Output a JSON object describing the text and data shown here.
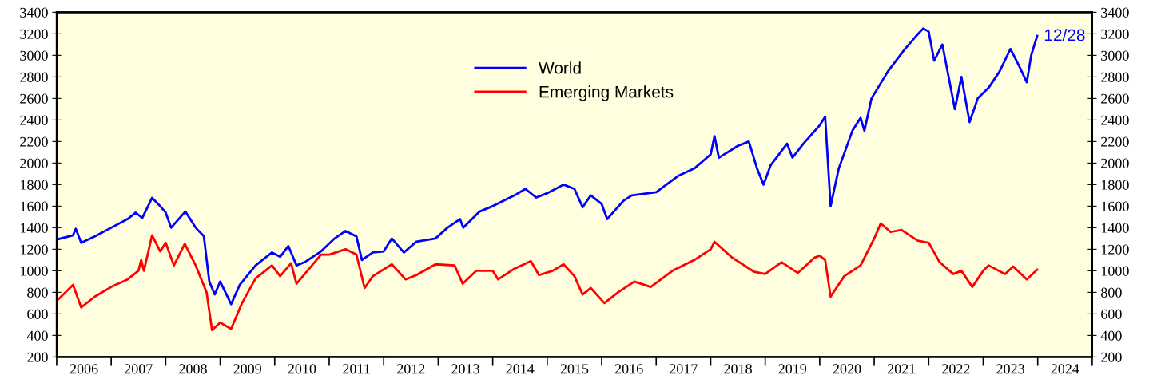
{
  "chart_data": {
    "type": "line",
    "xlim": [
      2006,
      2025
    ],
    "xticks": [
      {
        "value": 2006,
        "label": null
      },
      {
        "value": 2006.5,
        "label": "2006"
      },
      {
        "value": 2007,
        "label": null
      },
      {
        "value": 2007.5,
        "label": "2007"
      },
      {
        "value": 2008,
        "label": null
      },
      {
        "value": 2008.5,
        "label": "2008"
      },
      {
        "value": 2009,
        "label": null
      },
      {
        "value": 2009.5,
        "label": "2009"
      },
      {
        "value": 2010,
        "label": null
      },
      {
        "value": 2010.5,
        "label": "2010"
      },
      {
        "value": 2011,
        "label": null
      },
      {
        "value": 2011.5,
        "label": "2011"
      },
      {
        "value": 2012,
        "label": null
      },
      {
        "value": 2012.5,
        "label": "2012"
      },
      {
        "value": 2013,
        "label": null
      },
      {
        "value": 2013.5,
        "label": "2013"
      },
      {
        "value": 2014,
        "label": null
      },
      {
        "value": 2014.5,
        "label": "2014"
      },
      {
        "value": 2015,
        "label": null
      },
      {
        "value": 2015.5,
        "label": "2015"
      },
      {
        "value": 2016,
        "label": null
      },
      {
        "value": 2016.5,
        "label": "2016"
      },
      {
        "value": 2017,
        "label": null
      },
      {
        "value": 2017.5,
        "label": "2017"
      },
      {
        "value": 2018,
        "label": null
      },
      {
        "value": 2018.5,
        "label": "2018"
      },
      {
        "value": 2019,
        "label": null
      },
      {
        "value": 2019.5,
        "label": "2019"
      },
      {
        "value": 2020,
        "label": null
      },
      {
        "value": 2020.5,
        "label": "2020"
      },
      {
        "value": 2021,
        "label": null
      },
      {
        "value": 2021.5,
        "label": "2021"
      },
      {
        "value": 2022,
        "label": null
      },
      {
        "value": 2022.5,
        "label": "2022"
      },
      {
        "value": 2023,
        "label": null
      },
      {
        "value": 2023.5,
        "label": "2023"
      },
      {
        "value": 2024,
        "label": null
      },
      {
        "value": 2024.5,
        "label": "2024"
      },
      {
        "value": 2025,
        "label": null
      }
    ],
    "ylim": [
      200,
      3400
    ],
    "yticks": [
      200,
      400,
      600,
      800,
      1000,
      1200,
      1400,
      1600,
      1800,
      2000,
      2200,
      2400,
      2600,
      2800,
      3000,
      3200,
      3400
    ],
    "y2lim": [
      200,
      3400
    ],
    "y2ticks": [
      200,
      400,
      600,
      800,
      1000,
      1200,
      1400,
      1600,
      1800,
      2000,
      2200,
      2400,
      2600,
      2800,
      3000,
      3200,
      3400
    ],
    "grid": false,
    "legend": "top",
    "marker": "none",
    "line_style": "solid",
    "annotations": [
      {
        "text": "12/28",
        "x": 2023.99,
        "y": 3175
      }
    ],
    "series": [
      {
        "name": "World",
        "color": "#0000ff",
        "x": [
          2006.0,
          2006.3,
          2006.35,
          2006.45,
          2006.7,
          2007.0,
          2007.3,
          2007.45,
          2007.57,
          2007.75,
          2007.9,
          2008.0,
          2008.1,
          2008.36,
          2008.55,
          2008.7,
          2008.8,
          2008.9,
          2009.0,
          2009.2,
          2009.36,
          2009.65,
          2009.95,
          2010.1,
          2010.25,
          2010.4,
          2010.55,
          2010.85,
          2011.1,
          2011.3,
          2011.5,
          2011.6,
          2011.8,
          2012.0,
          2012.15,
          2012.37,
          2012.6,
          2012.95,
          2013.17,
          2013.4,
          2013.46,
          2013.76,
          2014.0,
          2014.2,
          2014.4,
          2014.6,
          2014.8,
          2015.0,
          2015.3,
          2015.5,
          2015.65,
          2015.8,
          2016.0,
          2016.1,
          2016.4,
          2016.55,
          2017.0,
          2017.4,
          2017.7,
          2018.0,
          2018.07,
          2018.15,
          2018.5,
          2018.7,
          2018.85,
          2018.97,
          2019.1,
          2019.4,
          2019.5,
          2019.7,
          2020.0,
          2020.1,
          2020.2,
          2020.35,
          2020.6,
          2020.75,
          2020.82,
          2020.95,
          2021.25,
          2021.55,
          2021.77,
          2021.9,
          2022.0,
          2022.1,
          2022.25,
          2022.48,
          2022.6,
          2022.75,
          2022.9,
          2023.1,
          2023.3,
          2023.5,
          2023.66,
          2023.8,
          2023.88,
          2023.99
        ],
        "values": [
          1290,
          1330,
          1390,
          1260,
          1320,
          1400,
          1480,
          1540,
          1490,
          1677,
          1600,
          1540,
          1400,
          1550,
          1400,
          1320,
          900,
          780,
          900,
          690,
          870,
          1050,
          1170,
          1130,
          1230,
          1050,
          1080,
          1180,
          1300,
          1370,
          1320,
          1100,
          1170,
          1180,
          1300,
          1170,
          1270,
          1300,
          1400,
          1480,
          1400,
          1550,
          1600,
          1650,
          1700,
          1760,
          1680,
          1720,
          1800,
          1760,
          1590,
          1700,
          1620,
          1480,
          1650,
          1700,
          1730,
          1880,
          1950,
          2080,
          2250,
          2050,
          2160,
          2200,
          1950,
          1800,
          1980,
          2180,
          2050,
          2180,
          2350,
          2430,
          1600,
          1950,
          2300,
          2420,
          2300,
          2600,
          2850,
          3050,
          3180,
          3250,
          3220,
          2950,
          3100,
          2500,
          2800,
          2380,
          2600,
          2700,
          2850,
          3060,
          2900,
          2750,
          3000,
          3180
        ]
      },
      {
        "name": "Emerging Markets",
        "color": "#ff0000",
        "x": [
          2006.0,
          2006.3,
          2006.45,
          2006.7,
          2007.0,
          2007.3,
          2007.5,
          2007.55,
          2007.6,
          2007.75,
          2007.9,
          2008.0,
          2008.15,
          2008.35,
          2008.55,
          2008.75,
          2008.85,
          2009.0,
          2009.2,
          2009.4,
          2009.65,
          2009.95,
          2010.1,
          2010.3,
          2010.4,
          2010.6,
          2010.85,
          2011.0,
          2011.3,
          2011.5,
          2011.65,
          2011.8,
          2012.15,
          2012.4,
          2012.6,
          2012.95,
          2013.3,
          2013.45,
          2013.7,
          2014.0,
          2014.1,
          2014.4,
          2014.7,
          2014.85,
          2015.1,
          2015.3,
          2015.5,
          2015.65,
          2015.8,
          2016.05,
          2016.3,
          2016.6,
          2016.9,
          2017.3,
          2017.7,
          2018.0,
          2018.07,
          2018.4,
          2018.8,
          2019.0,
          2019.3,
          2019.6,
          2019.9,
          2020.0,
          2020.1,
          2020.2,
          2020.45,
          2020.75,
          2021.0,
          2021.12,
          2021.3,
          2021.5,
          2021.8,
          2022.0,
          2022.2,
          2022.45,
          2022.6,
          2022.8,
          2023.0,
          2023.1,
          2023.4,
          2023.55,
          2023.8,
          2023.99
        ],
        "values": [
          720,
          870,
          660,
          760,
          850,
          920,
          1000,
          1100,
          1000,
          1330,
          1180,
          1260,
          1050,
          1250,
          1050,
          800,
          450,
          520,
          460,
          700,
          930,
          1050,
          950,
          1070,
          880,
          1000,
          1150,
          1150,
          1200,
          1150,
          840,
          950,
          1060,
          920,
          960,
          1060,
          1050,
          880,
          1000,
          1000,
          920,
          1020,
          1090,
          960,
          1000,
          1060,
          950,
          780,
          840,
          700,
          800,
          900,
          850,
          1000,
          1100,
          1200,
          1270,
          1120,
          990,
          970,
          1080,
          980,
          1120,
          1140,
          1100,
          760,
          950,
          1050,
          1300,
          1440,
          1360,
          1380,
          1280,
          1260,
          1080,
          970,
          1000,
          850,
          1000,
          1050,
          970,
          1040,
          920,
          1010
        ]
      }
    ]
  }
}
